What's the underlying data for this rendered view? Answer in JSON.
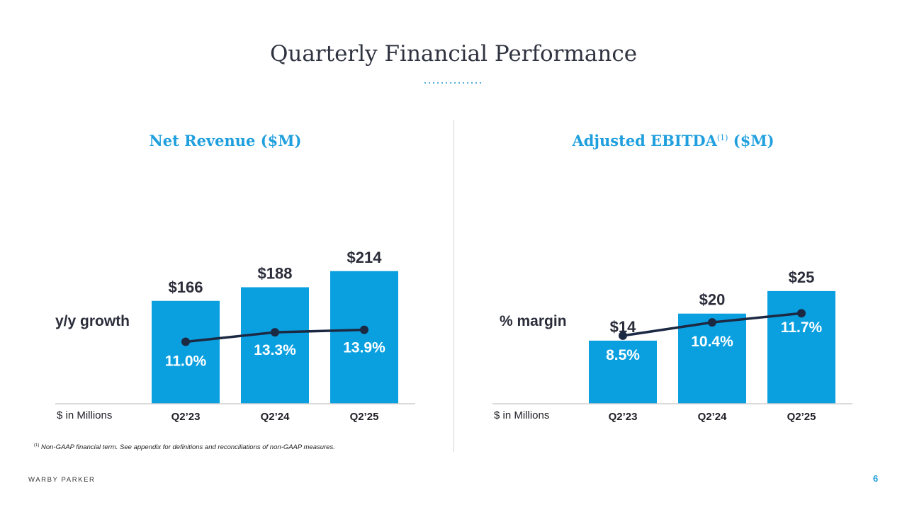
{
  "page_title": "Quarterly Financial Performance",
  "brand": "WARBY PARKER",
  "page_number": "6",
  "footnote": {
    "marker": "(1)",
    "text": " Non-GAAP financial term. See appendix for definitions and reconciliations of non-GAAP measures."
  },
  "colors": {
    "bar": "#0aa0e0",
    "line": "#1c2942",
    "title": "#1f9fdd"
  },
  "chart_data": [
    {
      "type": "bar",
      "title": "Net Revenue ($M)",
      "units_label": "$ in Millions",
      "categories": [
        "Q2’23",
        "Q2’24",
        "Q2’25"
      ],
      "values": [
        166,
        188,
        214
      ],
      "value_labels": [
        "$166",
        "$188",
        "$214"
      ],
      "ylim": [
        0,
        240
      ],
      "line_series": {
        "name": "y/y growth",
        "values": [
          11.0,
          13.3,
          13.9
        ],
        "labels": [
          "11.0%",
          "13.3%",
          "13.9%"
        ],
        "ylim": [
          -4,
          32
        ]
      }
    },
    {
      "type": "bar",
      "title": "Adjusted EBITDA",
      "title_superscript": "(1)",
      "title_suffix": " ($M)",
      "units_label": "$ in Millions",
      "categories": [
        "Q2’23",
        "Q2’24",
        "Q2’25"
      ],
      "values": [
        14,
        20,
        25
      ],
      "value_labels": [
        "$14",
        "$20",
        "$25"
      ],
      "ylim": [
        0,
        33
      ],
      "line_series": {
        "name": "% margin",
        "values": [
          8.5,
          10.4,
          11.7
        ],
        "labels": [
          "8.5%",
          "10.4%",
          "11.7%"
        ],
        "ylim": [
          -1.2,
          20
        ]
      }
    }
  ]
}
